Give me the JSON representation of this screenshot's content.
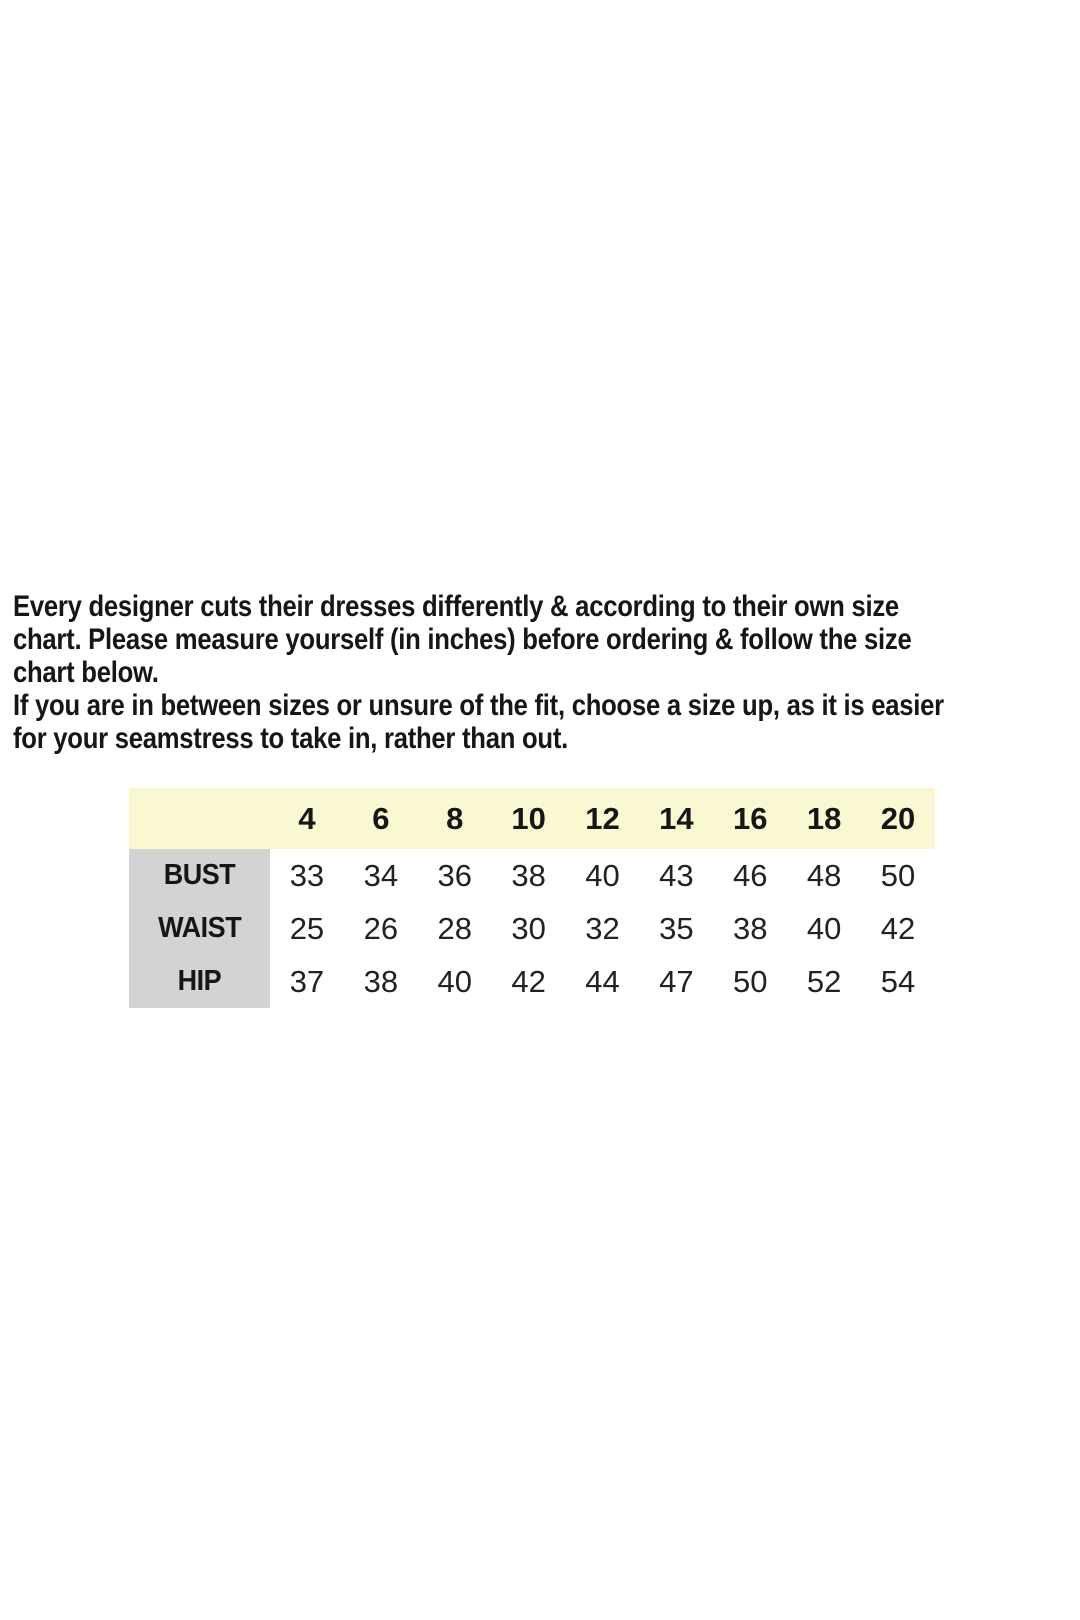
{
  "page": {
    "background": "#ffffff"
  },
  "intro": {
    "lines": [
      "Every designer cuts their dresses differently & according to their own size",
      "chart. Please measure yourself (in inches) before ordering & follow the size",
      "chart below.",
      "If you are in between sizes or unsure of the fit, choose a size up, as it is easier",
      "for your seamstress to take in, rather than out."
    ]
  },
  "size_chart": {
    "unit": "inches",
    "columns": [
      "4",
      "6",
      "8",
      "10",
      "12",
      "14",
      "16",
      "18",
      "20"
    ],
    "rows": [
      {
        "label": "BUST",
        "values": [
          "33",
          "34",
          "36",
          "38",
          "40",
          "43",
          "46",
          "48",
          "50"
        ]
      },
      {
        "label": "WAIST",
        "values": [
          "25",
          "26",
          "28",
          "30",
          "32",
          "35",
          "38",
          "40",
          "42"
        ]
      },
      {
        "label": "HIP",
        "values": [
          "37",
          "38",
          "40",
          "42",
          "44",
          "47",
          "50",
          "52",
          "54"
        ]
      }
    ],
    "colors": {
      "header_bg": "#faf8d2",
      "label_bg": "#d3d3d3",
      "text": "#161616"
    }
  }
}
